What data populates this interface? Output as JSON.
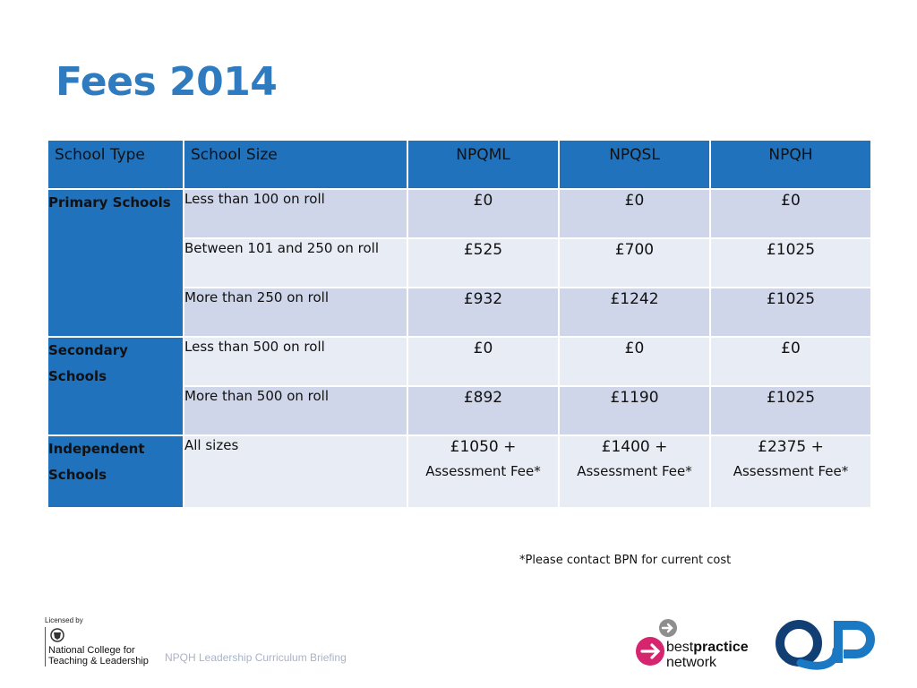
{
  "title": "Fees 2014",
  "table": {
    "headers": [
      "School Type",
      "School Size",
      "NPQML",
      "NPQSL",
      "NPQH"
    ],
    "groups": [
      {
        "type": "Primary Schools",
        "rows": [
          {
            "size": "Less than 100 on roll",
            "npqml": "£0",
            "npqsl": "£0",
            "npqh": "£0"
          },
          {
            "size": "Between 101 and 250 on roll",
            "npqml": "£525",
            "npqsl": "£700",
            "npqh": "£1025"
          },
          {
            "size": "More than 250 on roll",
            "npqml": "£932",
            "npqsl": "£1242",
            "npqh": "£1025"
          }
        ]
      },
      {
        "type": "Secondary Schools",
        "rows": [
          {
            "size": "Less than 500 on roll",
            "npqml": "£0",
            "npqsl": "£0",
            "npqh": "£0"
          },
          {
            "size": "More than 500 on roll",
            "npqml": "£892",
            "npqsl": "£1190",
            "npqh": "£1025"
          }
        ]
      },
      {
        "type": "Independent Schools",
        "rows": [
          {
            "size": "All sizes",
            "npqml": "£1050 +",
            "npqsl": "£1400 +",
            "npqh": "£2375 +",
            "sub": "Assessment Fee*"
          }
        ]
      }
    ]
  },
  "note": "*Please contact BPN for current cost",
  "footer": {
    "licensed_by": "Licensed by",
    "ncl_line1": "National College for",
    "ncl_line2": "Teaching & Leadership",
    "caption": "NPQH Leadership Curriculum Briefing",
    "bpn_best": "best",
    "bpn_practice": "practice",
    "bpn_network": "network"
  },
  "colors": {
    "title": "#2e7bbf",
    "header_bg": "#2072bd",
    "row_dark": "#cfd6e9",
    "row_light": "#e8ecf5",
    "bpn_magenta": "#d6246e",
    "olp_blue": "#1b78c2",
    "olp_navy": "#123f73"
  },
  "icons": [
    "crest-icon",
    "bpn-arrow-icon",
    "olp-logo"
  ]
}
